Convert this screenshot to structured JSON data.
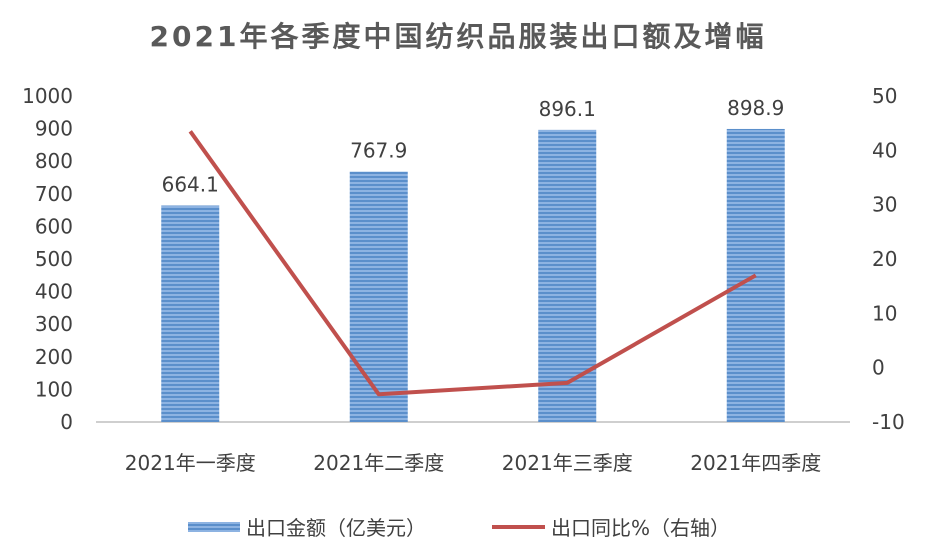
{
  "chart_data": {
    "type": "bar",
    "title": "2021年各季度中国纺织品服装出口额及增幅",
    "categories": [
      "2021年一季度",
      "2021年二季度",
      "2021年三季度",
      "2021年四季度"
    ],
    "series": [
      {
        "name": "出口金额（亿美元）",
        "type": "bar",
        "axis": "left",
        "values": [
          664.1,
          767.9,
          896.1,
          898.9
        ],
        "labels": [
          "664.1",
          "767.9",
          "896.1",
          "898.9"
        ],
        "color": "#5B8FCB"
      },
      {
        "name": "出口同比%（右轴）",
        "type": "line",
        "axis": "right",
        "values": [
          43.5,
          -4.9,
          -2.8,
          17.0
        ],
        "color": "#C0504D"
      }
    ],
    "y_left": {
      "min": 0,
      "max": 1000,
      "step": 100,
      "ticks": [
        "0",
        "100",
        "200",
        "300",
        "400",
        "500",
        "600",
        "700",
        "800",
        "900",
        "1000"
      ]
    },
    "y_right": {
      "min": -10,
      "max": 50,
      "step": 10,
      "ticks": [
        "-10",
        "0",
        "10",
        "20",
        "30",
        "40",
        "50"
      ]
    },
    "grid": false,
    "legend": "bottom"
  }
}
